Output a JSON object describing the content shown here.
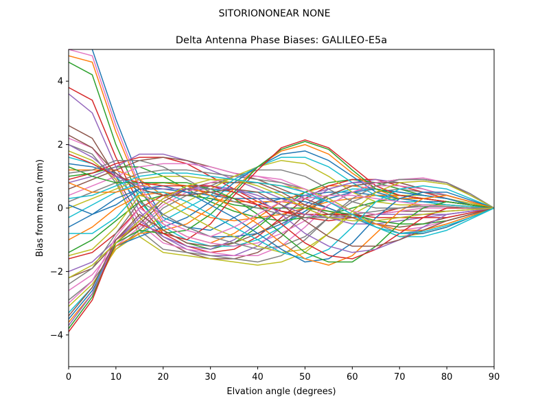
{
  "suptitle": "SITORIONONEAR   NONE",
  "chart_data": {
    "type": "line",
    "title": "Delta Antenna Phase Biases: GALILEO-E5a",
    "xlabel": "Elvation angle (degrees)",
    "ylabel": "Bias from mean (mm)",
    "xlim": [
      0,
      90
    ],
    "ylim": [
      -5,
      5
    ],
    "xticks": [
      0,
      10,
      20,
      30,
      40,
      50,
      60,
      70,
      80,
      90
    ],
    "yticks": [
      -4,
      -2,
      0,
      2,
      4
    ],
    "grid": false,
    "legend": "none",
    "colors": [
      "#1f77b4",
      "#ff7f0e",
      "#2ca02c",
      "#d62728",
      "#9467bd",
      "#8c564b",
      "#e377c2",
      "#7f7f7f",
      "#bcbd22",
      "#17becf"
    ],
    "x": [
      0,
      5,
      10,
      15,
      20,
      25,
      30,
      35,
      40,
      45,
      50,
      55,
      60,
      65,
      70,
      75,
      80,
      85,
      90
    ],
    "series": [
      {
        "values": [
          5.2,
          5.0,
          2.8,
          0.9,
          -0.3,
          -0.6,
          -0.7,
          -0.3,
          0.1,
          0.3,
          0.4,
          0.5,
          0.5,
          0.4,
          0.3,
          0.2,
          0.1,
          0.05,
          0
        ]
      },
      {
        "values": [
          4.8,
          4.6,
          2.4,
          0.6,
          -0.5,
          -0.9,
          -1.1,
          -0.8,
          -0.3,
          0.2,
          0.5,
          0.7,
          0.7,
          0.6,
          0.4,
          0.3,
          0.2,
          0.1,
          0
        ]
      },
      {
        "values": [
          4.6,
          4.2,
          2.0,
          0.3,
          -0.7,
          -1.1,
          -1.3,
          -1.1,
          -0.6,
          0.0,
          0.5,
          0.8,
          0.9,
          0.8,
          0.6,
          0.4,
          0.3,
          0.1,
          0
        ]
      },
      {
        "values": [
          3.8,
          3.4,
          1.6,
          0.1,
          -0.8,
          -1.2,
          -1.4,
          -1.3,
          -0.9,
          -0.3,
          0.3,
          0.7,
          0.9,
          0.9,
          0.7,
          0.5,
          0.3,
          0.15,
          0
        ]
      },
      {
        "values": [
          3.6,
          3.0,
          1.3,
          -0.1,
          -0.9,
          -1.3,
          -1.5,
          -1.5,
          -1.2,
          -0.6,
          0.1,
          0.6,
          0.8,
          0.9,
          0.8,
          0.6,
          0.4,
          0.2,
          0
        ]
      },
      {
        "values": [
          2.6,
          2.2,
          1.0,
          -0.3,
          -1.0,
          -1.4,
          -1.6,
          -1.6,
          -1.4,
          -0.9,
          -0.2,
          0.4,
          0.7,
          0.8,
          0.8,
          0.6,
          0.4,
          0.2,
          0
        ]
      },
      {
        "values": [
          2.2,
          1.9,
          0.9,
          -0.5,
          -1.1,
          -1.3,
          -1.4,
          -1.5,
          -1.5,
          -1.2,
          -0.6,
          0.1,
          0.5,
          0.7,
          0.7,
          0.6,
          0.4,
          0.2,
          0
        ]
      },
      {
        "values": [
          2.0,
          1.7,
          0.8,
          -0.7,
          -1.3,
          -1.4,
          -1.5,
          -1.6,
          -1.7,
          -1.5,
          -1.0,
          -0.3,
          0.2,
          0.5,
          0.6,
          0.5,
          0.4,
          0.2,
          0
        ]
      },
      {
        "values": [
          1.8,
          1.5,
          0.9,
          -0.9,
          -1.4,
          -1.5,
          -1.6,
          -1.7,
          -1.8,
          -1.7,
          -1.4,
          -0.8,
          -0.2,
          0.2,
          0.4,
          0.4,
          0.3,
          0.15,
          0
        ]
      },
      {
        "values": [
          1.6,
          1.4,
          1.0,
          0.2,
          -0.6,
          -1.0,
          -1.2,
          -1.2,
          -1.0,
          -0.6,
          -0.1,
          0.4,
          0.6,
          0.6,
          0.5,
          0.4,
          0.3,
          0.1,
          0
        ]
      },
      {
        "values": [
          1.4,
          1.3,
          1.1,
          0.5,
          -0.2,
          -0.6,
          -0.9,
          -0.9,
          -0.8,
          -0.5,
          -0.1,
          0.3,
          0.5,
          0.6,
          0.5,
          0.4,
          0.3,
          0.1,
          0
        ]
      },
      {
        "values": [
          1.2,
          1.2,
          1.2,
          0.9,
          0.4,
          0.0,
          -0.3,
          -0.4,
          -0.3,
          -0.2,
          0.0,
          0.2,
          0.3,
          0.4,
          0.4,
          0.3,
          0.2,
          0.1,
          0
        ]
      },
      {
        "values": [
          1.0,
          1.1,
          1.3,
          1.3,
          1.0,
          0.6,
          0.2,
          -0.1,
          -0.3,
          -0.4,
          -0.3,
          -0.2,
          0.0,
          0.2,
          0.3,
          0.3,
          0.2,
          0.1,
          0
        ]
      },
      {
        "values": [
          0.9,
          1.1,
          1.4,
          1.6,
          1.6,
          1.4,
          1.0,
          0.6,
          0.2,
          -0.1,
          -0.3,
          -0.4,
          -0.3,
          -0.2,
          0.0,
          0.1,
          0.1,
          0.05,
          0
        ]
      },
      {
        "values": [
          0.8,
          1.0,
          1.3,
          1.7,
          1.7,
          1.5,
          1.2,
          0.9,
          0.6,
          0.3,
          0.0,
          -0.3,
          -0.5,
          -0.5,
          -0.4,
          -0.3,
          -0.2,
          -0.1,
          0
        ]
      },
      {
        "values": [
          0.6,
          0.9,
          1.2,
          1.5,
          1.6,
          1.5,
          1.3,
          1.1,
          0.9,
          0.6,
          0.3,
          0.0,
          -0.3,
          -0.5,
          -0.6,
          -0.5,
          -0.3,
          -0.15,
          0
        ]
      },
      {
        "values": [
          0.4,
          0.7,
          1.0,
          1.3,
          1.4,
          1.4,
          1.3,
          1.1,
          1.0,
          0.8,
          0.5,
          0.2,
          -0.2,
          -0.5,
          -0.7,
          -0.6,
          -0.4,
          -0.2,
          0
        ]
      },
      {
        "values": [
          0.2,
          0.5,
          0.8,
          1.1,
          1.2,
          1.2,
          1.1,
          1.0,
          0.9,
          0.8,
          0.6,
          0.3,
          -0.1,
          -0.5,
          -0.8,
          -0.7,
          -0.5,
          -0.25,
          0
        ]
      },
      {
        "values": [
          0.0,
          0.3,
          0.6,
          0.9,
          1.0,
          1.0,
          0.9,
          0.8,
          0.8,
          0.7,
          0.6,
          0.3,
          -0.1,
          -0.6,
          -0.9,
          -0.8,
          -0.6,
          -0.3,
          0
        ]
      },
      {
        "values": [
          -0.3,
          0.1,
          0.5,
          0.8,
          0.8,
          0.7,
          0.6,
          0.5,
          0.5,
          0.5,
          0.4,
          0.2,
          -0.2,
          -0.6,
          -0.9,
          -0.9,
          -0.7,
          -0.35,
          0
        ]
      },
      {
        "values": [
          -0.6,
          -0.2,
          0.3,
          0.6,
          0.6,
          0.5,
          0.4,
          0.3,
          0.3,
          0.3,
          0.2,
          0.0,
          -0.3,
          -0.6,
          -0.8,
          -0.8,
          -0.6,
          -0.3,
          0
        ]
      },
      {
        "values": [
          -1.0,
          -0.6,
          0.0,
          0.4,
          0.5,
          0.4,
          0.3,
          0.2,
          0.2,
          0.2,
          0.1,
          -0.1,
          -0.3,
          -0.5,
          -0.7,
          -0.7,
          -0.5,
          -0.25,
          0
        ]
      },
      {
        "values": [
          -1.4,
          -1.0,
          -0.4,
          0.2,
          0.4,
          0.4,
          0.3,
          0.1,
          0.0,
          0.0,
          0.0,
          -0.1,
          -0.2,
          -0.4,
          -0.5,
          -0.5,
          -0.4,
          -0.2,
          0
        ]
      },
      {
        "values": [
          -1.6,
          -1.4,
          -0.8,
          0.0,
          0.4,
          0.6,
          0.5,
          0.3,
          0.1,
          -0.1,
          -0.2,
          -0.2,
          -0.2,
          -0.3,
          -0.3,
          -0.3,
          -0.3,
          -0.15,
          0
        ]
      },
      {
        "values": [
          -2.0,
          -1.7,
          -1.0,
          -0.3,
          0.3,
          0.6,
          0.7,
          0.6,
          0.4,
          0.1,
          -0.2,
          -0.3,
          -0.3,
          -0.2,
          -0.2,
          -0.2,
          -0.2,
          -0.1,
          0
        ]
      },
      {
        "values": [
          -2.2,
          -1.9,
          -1.1,
          -0.5,
          0.2,
          0.6,
          0.8,
          0.8,
          0.8,
          0.5,
          0.1,
          -0.2,
          -0.3,
          -0.2,
          -0.1,
          -0.1,
          -0.1,
          -0.05,
          0
        ]
      },
      {
        "values": [
          -2.6,
          -2.1,
          -1.2,
          -0.6,
          0.1,
          0.5,
          0.8,
          1.0,
          1.0,
          0.9,
          0.6,
          0.2,
          -0.1,
          -0.2,
          -0.1,
          0.0,
          0.0,
          0.0,
          0
        ]
      },
      {
        "values": [
          -2.9,
          -2.3,
          -1.3,
          -0.7,
          0.0,
          0.4,
          0.7,
          1.0,
          1.2,
          1.2,
          1.0,
          0.6,
          0.2,
          0.0,
          0.0,
          0.1,
          0.1,
          0.05,
          0
        ]
      },
      {
        "values": [
          -3.1,
          -2.4,
          -1.3,
          -0.8,
          -0.2,
          0.2,
          0.6,
          1.0,
          1.3,
          1.5,
          1.4,
          1.0,
          0.5,
          0.2,
          0.1,
          0.1,
          0.1,
          0.05,
          0
        ]
      },
      {
        "values": [
          -3.3,
          -2.5,
          -1.2,
          -0.8,
          -0.4,
          0.0,
          0.4,
          0.9,
          1.3,
          1.6,
          1.6,
          1.3,
          0.8,
          0.4,
          0.2,
          0.2,
          0.1,
          0.05,
          0
        ]
      },
      {
        "values": [
          -3.5,
          -2.6,
          -1.2,
          -0.9,
          -0.6,
          -0.3,
          0.2,
          0.8,
          1.3,
          1.7,
          1.8,
          1.5,
          1.0,
          0.5,
          0.3,
          0.2,
          0.2,
          0.1,
          0
        ]
      },
      {
        "values": [
          -3.6,
          -2.7,
          -1.2,
          -0.8,
          -0.7,
          -0.5,
          0.0,
          0.6,
          1.3,
          1.8,
          2.0,
          1.7,
          1.1,
          0.6,
          0.3,
          0.3,
          0.2,
          0.1,
          0
        ]
      },
      {
        "values": [
          -3.8,
          -2.8,
          -1.1,
          -0.7,
          -0.8,
          -0.7,
          -0.2,
          0.5,
          1.3,
          1.85,
          2.1,
          1.85,
          1.2,
          0.6,
          0.4,
          0.3,
          0.2,
          0.1,
          0
        ]
      },
      {
        "values": [
          -3.9,
          -2.9,
          -1.0,
          -0.5,
          -0.8,
          -1.0,
          -0.5,
          0.4,
          1.2,
          1.9,
          2.15,
          1.9,
          1.3,
          0.7,
          0.4,
          0.3,
          0.2,
          0.1,
          0
        ]
      },
      {
        "values": [
          -3.7,
          -2.7,
          -1.0,
          -0.4,
          -0.9,
          -1.2,
          -1.3,
          -1.0,
          -0.5,
          0.0,
          0.4,
          0.6,
          0.8,
          0.8,
          0.9,
          0.9,
          0.8,
          0.4,
          0
        ]
      },
      {
        "values": [
          -3.4,
          -2.5,
          -1.0,
          -0.2,
          -0.7,
          -1.1,
          -1.2,
          -1.1,
          -0.8,
          -0.4,
          0.0,
          0.4,
          0.7,
          0.8,
          0.9,
          0.9,
          0.8,
          0.4,
          0
        ]
      },
      {
        "values": [
          -3.0,
          -2.3,
          -0.9,
          0.0,
          -0.5,
          -0.9,
          -1.1,
          -1.2,
          -1.1,
          -0.8,
          -0.4,
          0.1,
          0.5,
          0.8,
          0.9,
          0.95,
          0.8,
          0.45,
          0
        ]
      },
      {
        "values": [
          -2.4,
          -1.9,
          -0.8,
          0.2,
          -0.2,
          -0.6,
          -0.9,
          -1.1,
          -1.3,
          -1.2,
          -0.9,
          -0.3,
          0.3,
          0.7,
          0.9,
          0.9,
          0.8,
          0.45,
          0
        ]
      },
      {
        "values": [
          -1.5,
          -1.3,
          -0.6,
          0.4,
          0.2,
          -0.2,
          -0.6,
          -0.9,
          -1.2,
          -1.4,
          -1.3,
          -0.8,
          -0.1,
          0.5,
          0.8,
          0.85,
          0.75,
          0.4,
          0
        ]
      },
      {
        "values": [
          -0.8,
          -0.8,
          -0.3,
          0.5,
          0.5,
          0.2,
          -0.2,
          -0.6,
          -1.0,
          -1.4,
          -1.6,
          -1.3,
          -0.6,
          0.2,
          0.6,
          0.7,
          0.6,
          0.3,
          0
        ]
      },
      {
        "values": [
          0.1,
          -0.2,
          0.1,
          0.6,
          0.7,
          0.5,
          0.1,
          -0.3,
          -0.8,
          -1.3,
          -1.7,
          -1.6,
          -1.1,
          -0.3,
          0.3,
          0.5,
          0.5,
          0.25,
          0
        ]
      },
      {
        "values": [
          0.8,
          0.5,
          0.5,
          0.7,
          0.8,
          0.7,
          0.4,
          0.0,
          -0.5,
          -1.1,
          -1.6,
          -1.8,
          -1.5,
          -0.8,
          -0.1,
          0.3,
          0.4,
          0.2,
          0
        ]
      },
      {
        "values": [
          1.3,
          1.0,
          0.8,
          0.8,
          0.8,
          0.8,
          0.6,
          0.3,
          -0.2,
          -0.8,
          -1.4,
          -1.7,
          -1.7,
          -1.2,
          -0.5,
          0.0,
          0.2,
          0.1,
          0
        ]
      },
      {
        "values": [
          1.7,
          1.4,
          1.0,
          0.8,
          0.7,
          0.7,
          0.7,
          0.5,
          0.1,
          -0.5,
          -1.1,
          -1.5,
          -1.6,
          -1.3,
          -0.8,
          -0.3,
          0.0,
          0.0,
          0
        ]
      },
      {
        "values": [
          2.0,
          1.6,
          1.0,
          0.7,
          0.6,
          0.6,
          0.6,
          0.6,
          0.3,
          -0.2,
          -0.8,
          -1.2,
          -1.4,
          -1.3,
          -1.0,
          -0.6,
          -0.2,
          -0.1,
          0
        ]
      },
      {
        "values": [
          2.3,
          1.9,
          1.1,
          0.6,
          0.4,
          0.4,
          0.5,
          0.6,
          0.5,
          0.1,
          -0.4,
          -0.9,
          -1.2,
          -1.2,
          -1.0,
          -0.7,
          -0.4,
          -0.2,
          0
        ]
      },
      {
        "values": [
          5.0,
          4.8,
          2.6,
          0.7,
          -0.4,
          -0.7,
          -0.9,
          -0.6,
          -0.2,
          0.2,
          0.3,
          0.4,
          0.4,
          0.3,
          0.2,
          0.1,
          0.05,
          0.0,
          0
        ]
      },
      {
        "values": [
          1.1,
          1.2,
          1.5,
          1.5,
          1.3,
          0.9,
          0.5,
          0.2,
          0.0,
          -0.2,
          -0.3,
          -0.3,
          -0.2,
          -0.1,
          0.0,
          0.05,
          0.05,
          0.0,
          0
        ]
      },
      {
        "values": [
          -2.2,
          -1.8,
          -1.1,
          -0.4,
          0.3,
          0.7,
          0.9,
          0.9,
          0.7,
          0.4,
          0.0,
          -0.3,
          -0.4,
          -0.4,
          -0.3,
          -0.2,
          -0.1,
          -0.05,
          0
        ]
      },
      {
        "values": [
          0.3,
          0.4,
          0.7,
          1.0,
          1.1,
          1.1,
          1.0,
          0.9,
          0.8,
          0.7,
          0.5,
          0.2,
          -0.2,
          -0.6,
          -0.8,
          -0.75,
          -0.55,
          -0.3,
          0
        ]
      }
    ]
  }
}
